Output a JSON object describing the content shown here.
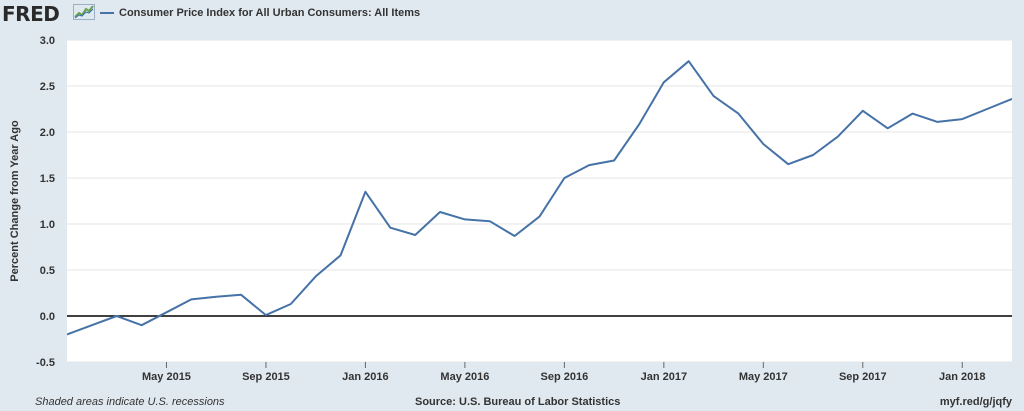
{
  "header": {
    "logo_text": "FRED",
    "logo_icon": "trend-line-icon",
    "series_title": "Consumer Price Index for All Urban Consumers: All Items"
  },
  "footer": {
    "left": "Shaded areas indicate U.S. recessions",
    "center": "Source: U.S. Bureau of Labor Statistics",
    "right": "myf.red/g/jqfy"
  },
  "colors": {
    "line": "#4572a7",
    "background": "#e1e9f0",
    "plot_background": "#ffffff",
    "gridline": "#e6e6e6",
    "zero_line": "#000000"
  },
  "chart_data": {
    "type": "line",
    "title": "",
    "xlabel": "",
    "ylabel": "Percent Change from Year Ago",
    "ylim": [
      -0.5,
      3.0
    ],
    "yticks": [
      -0.5,
      0.0,
      0.5,
      1.0,
      1.5,
      2.0,
      2.5,
      3.0
    ],
    "ytick_labels": [
      "-0.5",
      "0.0",
      "0.5",
      "1.0",
      "1.5",
      "2.0",
      "2.5",
      "3.0"
    ],
    "xlim": [
      "2015-01",
      "2018-03"
    ],
    "xticks": [
      "2015-05",
      "2015-09",
      "2016-01",
      "2016-05",
      "2016-09",
      "2017-01",
      "2017-05",
      "2017-09",
      "2018-01"
    ],
    "xtick_labels": [
      "May 2015",
      "Sep 2015",
      "Jan 2016",
      "May 2016",
      "Sep 2016",
      "Jan 2017",
      "May 2017",
      "Sep 2017",
      "Jan 2018"
    ],
    "grid": true,
    "zero_line": true,
    "series": [
      {
        "name": "Consumer Price Index for All Urban Consumers: All Items",
        "x": [
          "2015-01",
          "2015-02",
          "2015-03",
          "2015-04",
          "2015-05",
          "2015-06",
          "2015-07",
          "2015-08",
          "2015-09",
          "2015-10",
          "2015-11",
          "2015-12",
          "2016-01",
          "2016-02",
          "2016-03",
          "2016-04",
          "2016-05",
          "2016-06",
          "2016-07",
          "2016-08",
          "2016-09",
          "2016-10",
          "2016-11",
          "2016-12",
          "2017-01",
          "2017-02",
          "2017-03",
          "2017-04",
          "2017-05",
          "2017-06",
          "2017-07",
          "2017-08",
          "2017-09",
          "2017-10",
          "2017-11",
          "2017-12",
          "2018-01",
          "2018-02",
          "2018-03"
        ],
        "values": [
          -0.2,
          -0.1,
          0.0,
          -0.1,
          0.04,
          0.18,
          0.21,
          0.23,
          0.01,
          0.13,
          0.43,
          0.66,
          1.35,
          0.96,
          0.88,
          1.13,
          1.05,
          1.03,
          0.87,
          1.08,
          1.5,
          1.64,
          1.69,
          2.08,
          2.54,
          2.77,
          2.39,
          2.2,
          1.87,
          1.65,
          1.75,
          1.95,
          2.23,
          2.04,
          2.2,
          2.11,
          2.14,
          2.25,
          2.36
        ]
      }
    ]
  }
}
